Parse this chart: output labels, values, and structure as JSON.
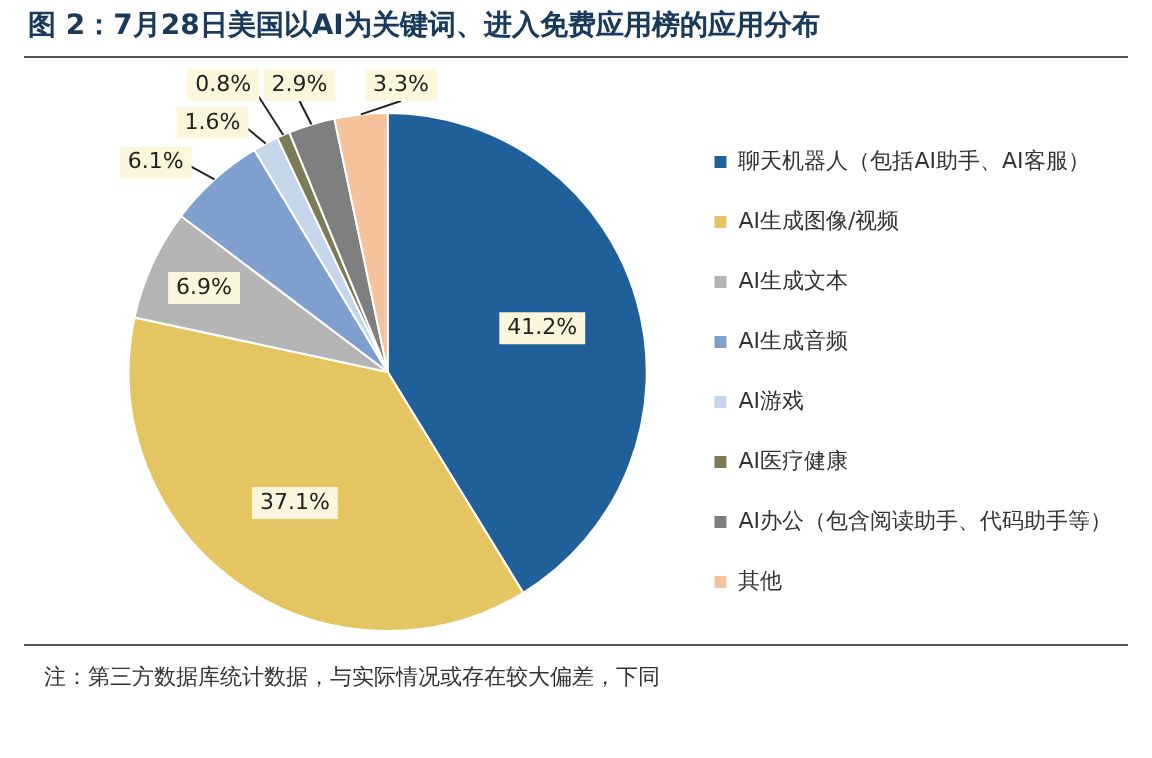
{
  "chart_data": {
    "type": "pie",
    "title": "图 2：7月28日美国以AI为关键词、进入免费应用榜的应用分布",
    "categories": [
      "聊天机器人（包括AI助手、AI客服）",
      "AI生成图像/视频",
      "AI生成文本",
      "AI生成音频",
      "AI游戏",
      "AI医疗健康",
      "AI办公（包含阅读助手、代码助手等）",
      "其他"
    ],
    "values": [
      41.2,
      37.1,
      6.9,
      6.1,
      1.6,
      0.8,
      2.9,
      3.3
    ],
    "colors": [
      "#1f5f9a",
      "#e4c562",
      "#b5b5b5",
      "#7f9fcf",
      "#c6d6ea",
      "#7b7b55",
      "#7f7f7f",
      "#f5c29b"
    ],
    "value_labels": [
      "41.2%",
      "37.1%",
      "6.9%",
      "6.1%",
      "1.6%",
      "0.8%",
      "2.9%",
      "3.3%"
    ],
    "legend": "right",
    "annotations": [
      "注：第三方数据库统计数据，与实际情况或存在较大偏差，下同"
    ]
  }
}
